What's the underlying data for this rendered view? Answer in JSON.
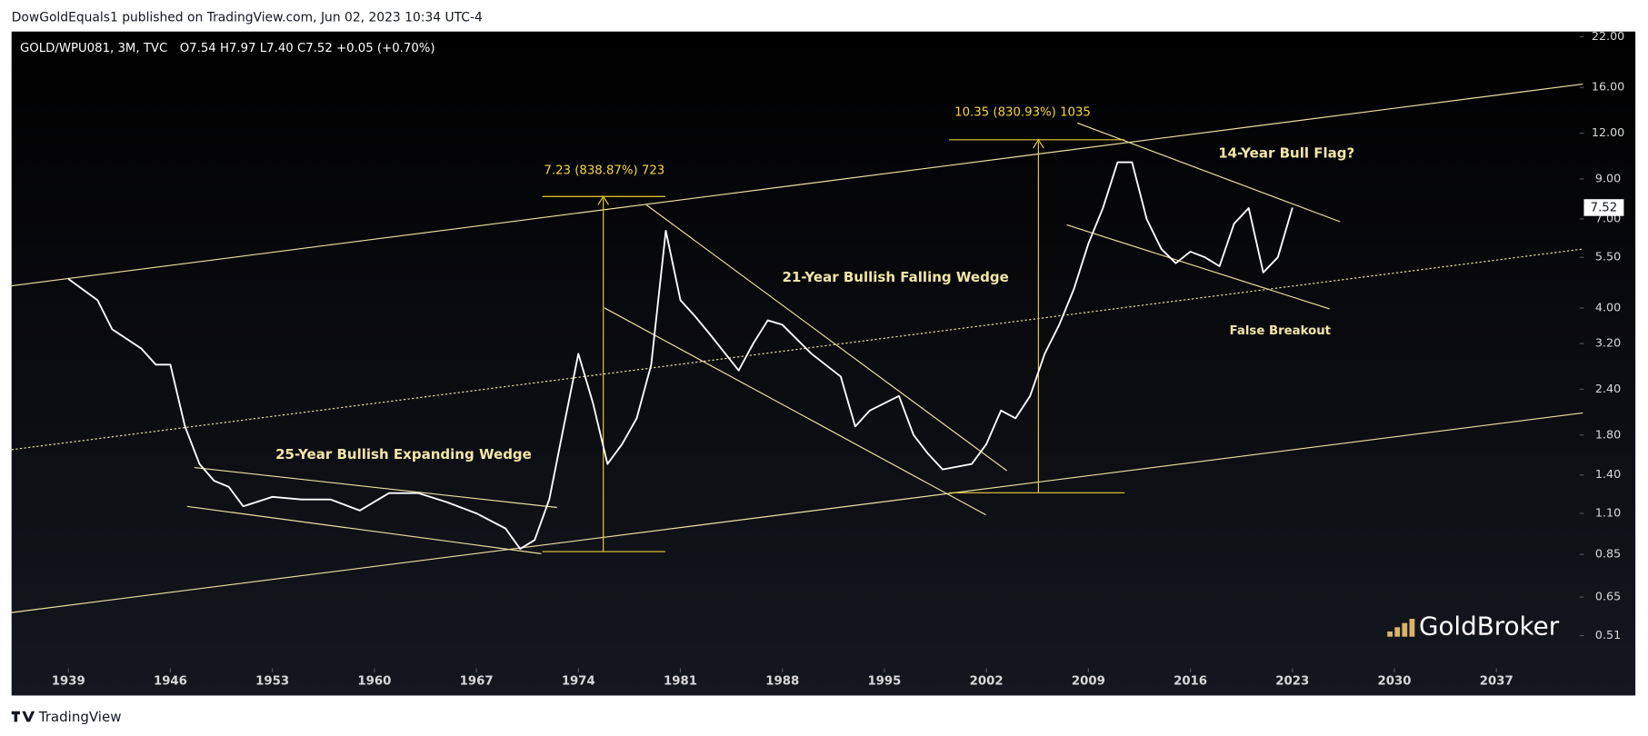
{
  "header": "DowGoldEquals1 published on TradingView.com, Jun 02, 2023 10:34 UTC-4",
  "footer": "TradingView",
  "watermark": "GoldBroker",
  "annotations": [
    "7.23 (838.87%) 723",
    "10.35 (830.93%) 1035",
    "14-Year Bull Flag?",
    "21-Year Bullish Falling Wedge",
    "25-Year Bullish Expanding Wedge",
    "False Breakout"
  ],
  "chart_data": {
    "type": "line",
    "title": "GOLD/WPU081, 3M, TVC",
    "subtitle": "O7.54  H7.97  L7.40  C7.52  +0.05 (+0.70%)",
    "log_scale": true,
    "color": "#ffffff",
    "x": [
      1939,
      1941,
      1942,
      1944,
      1945,
      1946,
      1947,
      1948,
      1949,
      1950,
      1951,
      1953,
      1955,
      1957,
      1959,
      1961,
      1963,
      1965,
      1967,
      1969,
      1970,
      1971,
      1972,
      1973,
      1974,
      1975,
      1976,
      1977,
      1978,
      1979,
      1980,
      1981,
      1982,
      1983,
      1985,
      1986,
      1987,
      1988,
      1990,
      1992,
      1993,
      1994,
      1996,
      1997,
      1998,
      1999,
      2001,
      2002,
      2003,
      2004,
      2005,
      2006,
      2007,
      2008,
      2009,
      2010,
      2011,
      2012,
      2013,
      2014,
      2015,
      2016,
      2017,
      2018,
      2019,
      2020,
      2021,
      2022,
      2023
    ],
    "values": [
      4.8,
      4.2,
      3.5,
      3.1,
      2.8,
      2.8,
      1.9,
      1.5,
      1.35,
      1.3,
      1.15,
      1.22,
      1.2,
      1.2,
      1.12,
      1.25,
      1.25,
      1.18,
      1.1,
      1.0,
      0.88,
      0.93,
      1.2,
      1.9,
      3.0,
      2.2,
      1.5,
      1.7,
      2.0,
      2.8,
      6.5,
      4.2,
      3.8,
      3.4,
      2.7,
      3.2,
      3.7,
      3.6,
      3.0,
      2.6,
      1.9,
      2.1,
      2.3,
      1.8,
      1.6,
      1.45,
      1.5,
      1.7,
      2.1,
      2.0,
      2.3,
      3.0,
      3.6,
      4.5,
      6.0,
      7.5,
      10.0,
      10.0,
      7.0,
      5.8,
      5.3,
      5.7,
      5.5,
      5.2,
      6.8,
      7.5,
      5.0,
      5.5,
      7.52
    ],
    "xlim": [
      1935.1,
      2042.5
    ],
    "xticks": [
      1939,
      1946,
      1953,
      1960,
      1967,
      1974,
      1981,
      1988,
      1995,
      2002,
      2009,
      2016,
      2023,
      2030,
      2037
    ],
    "ylim": [
      0.35,
      22.74
    ],
    "yticks": [
      0.51,
      0.65,
      0.85,
      {
        "value": 1.1,
        "label": "1.10"
      },
      {
        "value": 1.4,
        "label": "1.40"
      },
      {
        "value": 1.8,
        "label": "1.80"
      },
      {
        "value": 2.4,
        "label": "2.40"
      },
      {
        "value": 3.2,
        "label": "3.20"
      },
      {
        "value": 4,
        "label": "4.00"
      },
      {
        "value": 5.5,
        "label": "5.50"
      },
      {
        "value": 7,
        "label": "7.00"
      },
      {
        "value": 9,
        "label": "9.00"
      },
      {
        "value": 12,
        "label": "12.00"
      },
      {
        "value": 16,
        "label": "16.00"
      },
      {
        "value": 22,
        "label": "22.00"
      }
    ]
  }
}
